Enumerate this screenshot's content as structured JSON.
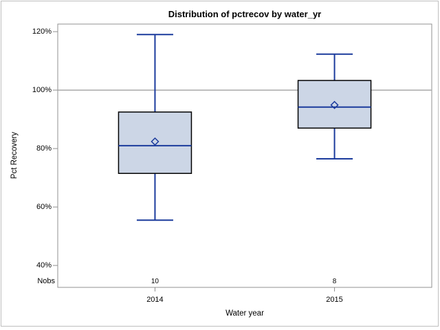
{
  "chart_data": {
    "type": "box",
    "title": "Distribution of pctrecov by water_yr",
    "xlabel": "Water year",
    "ylabel": "Pct Recovery",
    "categories": [
      "2014",
      "2015"
    ],
    "nobs_row_label": "Nobs",
    "yticks": [
      {
        "value": 120,
        "label": "120%"
      },
      {
        "value": 100,
        "label": "100%"
      },
      {
        "value": 80,
        "label": "80%"
      },
      {
        "value": 60,
        "label": "60%"
      },
      {
        "value": 40,
        "label": "40%"
      }
    ],
    "ylim": [
      32.5,
      122.6
    ],
    "reference_line_value": 100,
    "grid": false,
    "legend": "none",
    "series": [
      {
        "category": "2014",
        "n": 10,
        "whisker_low": 55.5,
        "q1": 71.5,
        "median": 81.0,
        "mean": 82.4,
        "q3": 92.5,
        "whisker_high": 119.0
      },
      {
        "category": "2015",
        "n": 8,
        "whisker_low": 76.5,
        "q1": 87.0,
        "median": 94.2,
        "mean": 94.9,
        "q3": 103.3,
        "whisker_high": 112.3
      }
    ],
    "colors": {
      "box_fill": "#ccd6e6",
      "box_border": "#000000",
      "whisker_line": "#1a3a9c",
      "median_line": "#1a3a9c",
      "mean_marker": "#1a3a9c",
      "reference_line": "#a9a9a9",
      "frame_border": "#919191",
      "tick": "#8f8f8f",
      "text": "#000000",
      "page_border": "#bebebe"
    }
  }
}
